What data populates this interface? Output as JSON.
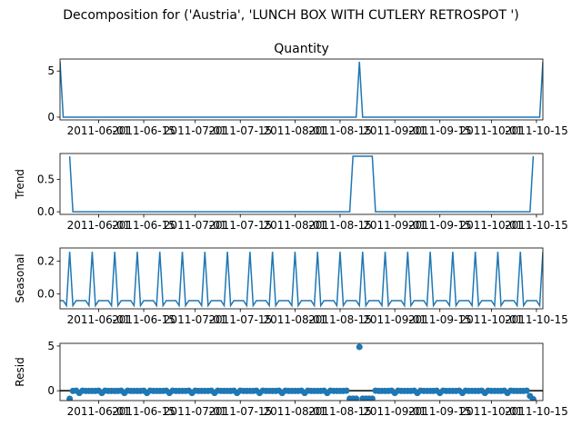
{
  "figure": {
    "suptitle": "Decomposition for ('Austria', 'LUNCH BOX WITH CUTLERY RETROSPOT ')",
    "line_color": "#1f77b4"
  },
  "x_tick_labels": [
    "2011-06-01",
    "2011-06-15",
    "2011-07-01",
    "2011-07-15",
    "2011-08-01",
    "2011-08-15",
    "2011-09-01",
    "2011-09-15",
    "2011-10-01",
    "2011-10-15"
  ],
  "chart_data": [
    {
      "type": "line",
      "title": "Quantity",
      "ylabel": "",
      "x_start": "2011-05-20",
      "x_end": "2011-10-17",
      "xlim": [
        "2011-05-20",
        "2011-10-17"
      ],
      "ylim": [
        -0.3,
        6.3
      ],
      "yticks": [
        0,
        5
      ],
      "spikes": [
        {
          "date": "2011-05-20",
          "value": 6
        },
        {
          "date": "2011-08-21",
          "value": 6
        },
        {
          "date": "2011-10-17",
          "value": 6
        }
      ],
      "baseline": 0
    },
    {
      "type": "line",
      "title": "",
      "ylabel": "Trend",
      "xlim": [
        "2011-05-20",
        "2011-10-17"
      ],
      "ylim": [
        -0.04,
        0.9
      ],
      "yticks": [
        0.0,
        0.5
      ],
      "x": [
        "2011-05-23",
        "2011-05-24",
        "2011-08-18",
        "2011-08-19",
        "2011-08-25",
        "2011-08-26",
        "2011-10-13",
        "2011-10-14"
      ],
      "values": [
        0.857,
        0.0,
        0.0,
        0.857,
        0.857,
        0.0,
        0.0,
        0.857
      ]
    },
    {
      "type": "line",
      "title": "",
      "ylabel": "Seasonal",
      "xlim": [
        "2011-05-20",
        "2011-10-17"
      ],
      "ylim": [
        -0.09,
        0.28
      ],
      "yticks": [
        0.0,
        0.2
      ],
      "period_days": 7,
      "first_date": "2011-05-20",
      "weekly_pattern": [
        -0.04,
        -0.04,
        -0.07,
        0.257,
        -0.07,
        -0.04,
        -0.04
      ]
    },
    {
      "type": "scatter",
      "title": "",
      "ylabel": "Resid",
      "xlim": [
        "2011-05-20",
        "2011-10-17"
      ],
      "ylim": [
        -1.1,
        5.3
      ],
      "yticks": [
        0,
        5
      ],
      "zero_line": true,
      "first_date": "2011-05-23",
      "last_date": "2011-10-14",
      "period_days": 7,
      "weekly_resid": [
        -0.02,
        -0.02,
        0.01,
        -0.25,
        0.01,
        -0.02,
        -0.02
      ],
      "outliers": [
        {
          "date": "2011-08-18",
          "value": -0.88
        },
        {
          "date": "2011-08-19",
          "value": -0.88
        },
        {
          "date": "2011-08-20",
          "value": -0.88
        },
        {
          "date": "2011-08-21",
          "value": 4.9
        },
        {
          "date": "2011-08-22",
          "value": -0.88
        },
        {
          "date": "2011-08-23",
          "value": -0.88
        },
        {
          "date": "2011-08-24",
          "value": -0.88
        },
        {
          "date": "2011-08-25",
          "value": -0.88
        },
        {
          "date": "2011-05-23",
          "value": -0.9
        },
        {
          "date": "2011-10-13",
          "value": -0.6
        },
        {
          "date": "2011-10-14",
          "value": -0.95
        }
      ]
    }
  ]
}
